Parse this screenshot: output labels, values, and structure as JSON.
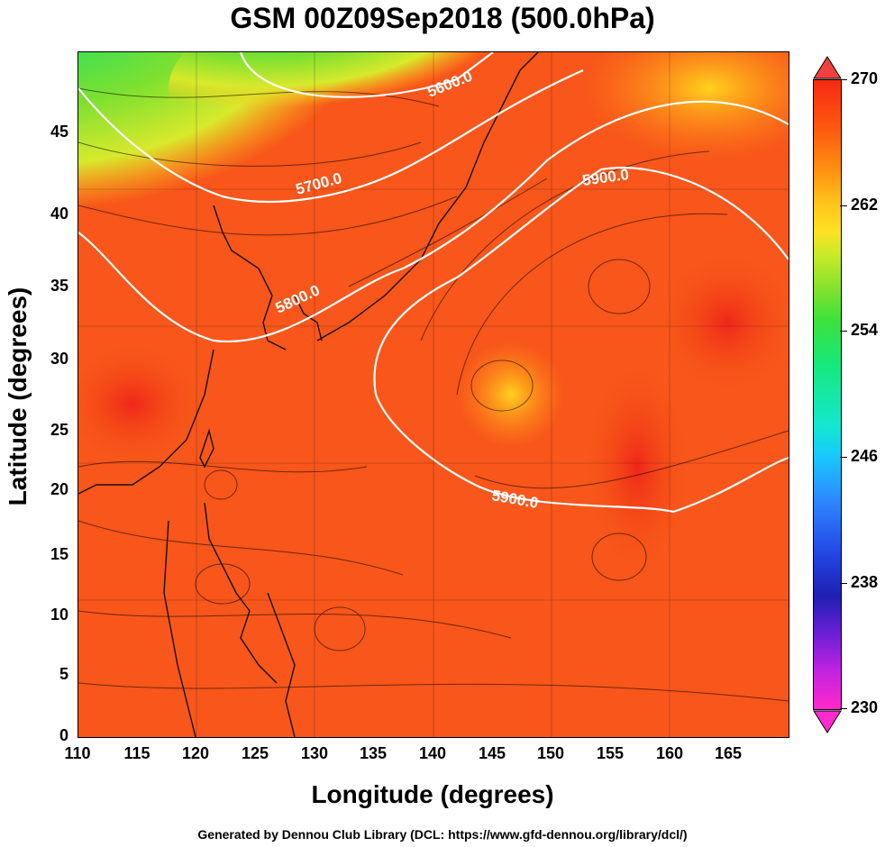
{
  "title": "GSM 00Z09Sep2018 (500.0hPa)",
  "axes": {
    "xlabel": "Longitude (degrees)",
    "ylabel": "Latitude  (degrees)",
    "xticks": [
      "110",
      "115",
      "120",
      "125",
      "130",
      "135",
      "140",
      "145",
      "150",
      "155",
      "160",
      "165"
    ],
    "yticks": [
      "0",
      "5",
      "10",
      "15",
      "20",
      "25",
      "30",
      "35",
      "40",
      "45"
    ],
    "xlim": [
      110,
      170
    ],
    "ylim": [
      0,
      50
    ]
  },
  "colorbar": {
    "ticks": [
      "230",
      "238",
      "246",
      "254",
      "262",
      "270"
    ],
    "range": [
      230,
      270
    ]
  },
  "contours": {
    "labels": [
      "5600.0",
      "5700.0",
      "5800.0",
      "5900.0",
      "5900.0"
    ]
  },
  "footer": "Generated by Dennou Club Library (DCL: https://www.gfd-dennou.org/library/dcl/)"
}
